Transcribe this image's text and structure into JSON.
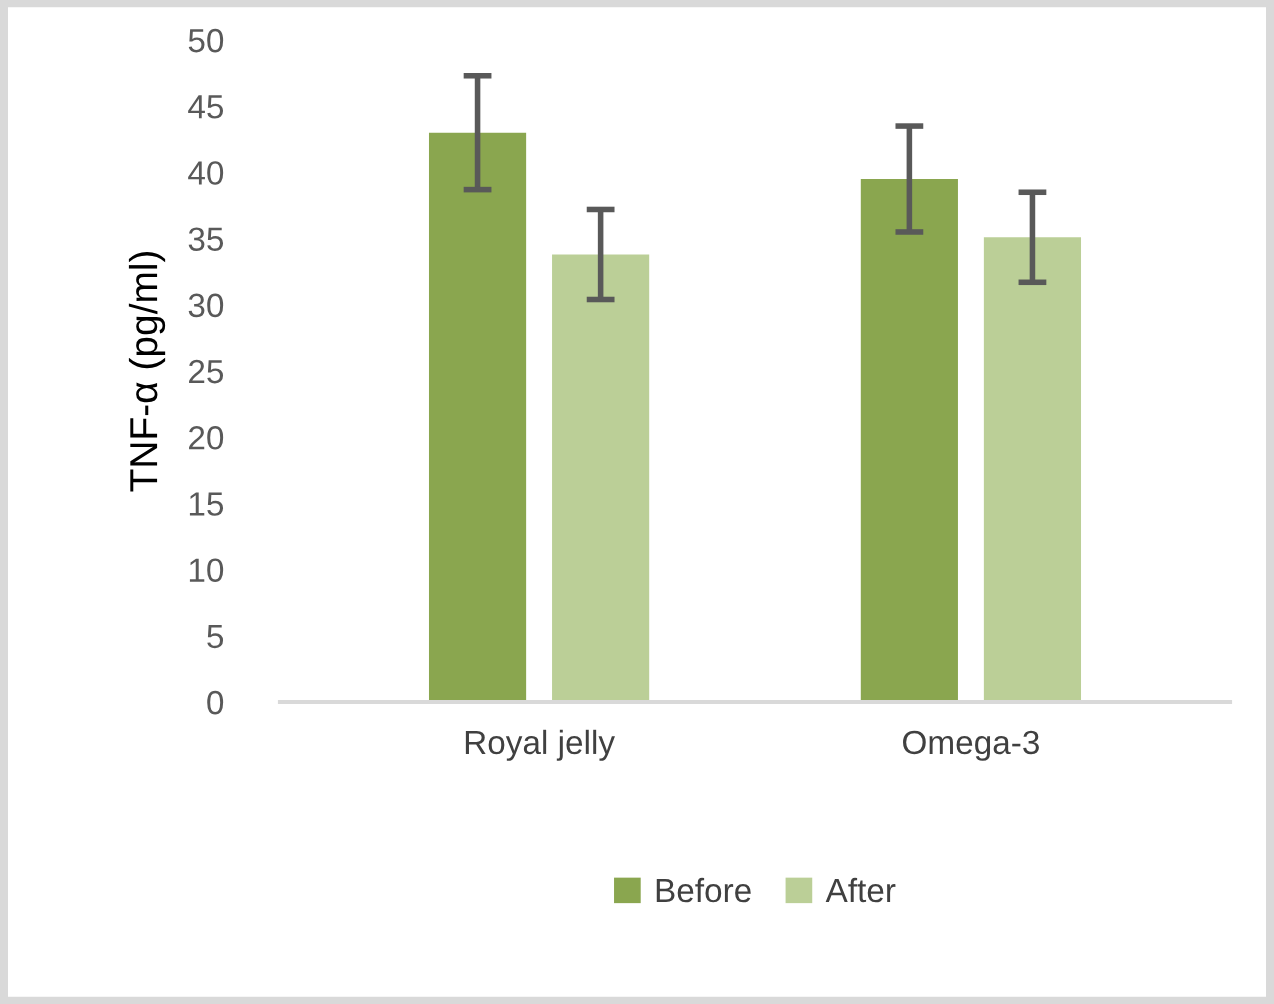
{
  "chart_data": {
    "type": "bar",
    "ylabel": "TNF-α (pg/ml)",
    "categories": [
      "Royal jelly",
      "Omega-3"
    ],
    "series": [
      {
        "name": "Before",
        "color": "#8aa64f",
        "values": [
          43.0,
          39.5
        ],
        "errors": [
          4.3,
          4.0
        ]
      },
      {
        "name": "After",
        "color": "#bbcf97",
        "values": [
          33.8,
          35.1
        ],
        "errors": [
          3.4,
          3.4
        ]
      }
    ],
    "ylim": [
      0,
      50
    ],
    "yticks": [
      0,
      5,
      10,
      15,
      20,
      25,
      30,
      35,
      40,
      45,
      50
    ],
    "grid": false,
    "legend": "bottom"
  }
}
